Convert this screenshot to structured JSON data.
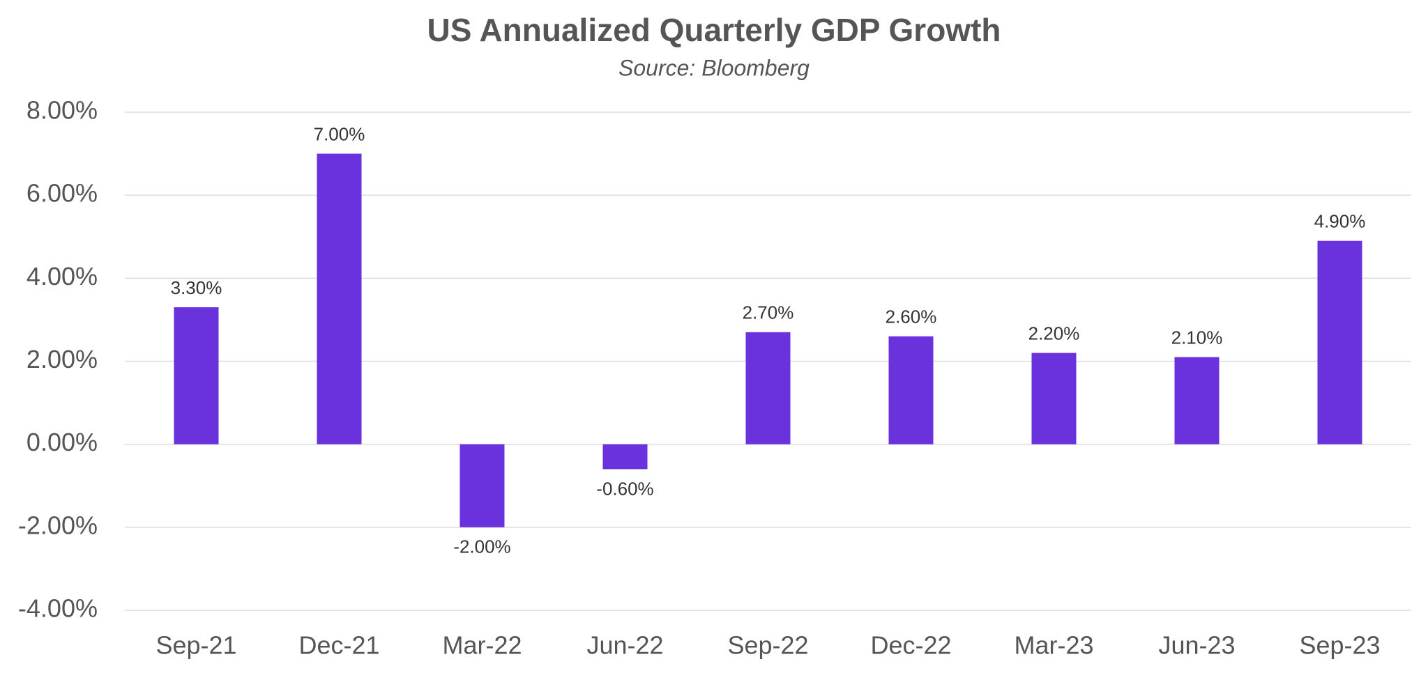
{
  "chart_data": {
    "type": "bar",
    "title": "US Annualized Quarterly GDP Growth",
    "subtitle": "Source: Bloomberg",
    "categories": [
      "Sep-21",
      "Dec-21",
      "Mar-22",
      "Jun-22",
      "Sep-22",
      "Dec-22",
      "Mar-23",
      "Jun-23",
      "Sep-23"
    ],
    "values": [
      3.3,
      7.0,
      -2.0,
      -0.6,
      2.7,
      2.6,
      2.2,
      2.1,
      4.9
    ],
    "value_labels": [
      "3.30%",
      "7.00%",
      "-2.00%",
      "-0.60%",
      "2.70%",
      "2.60%",
      "2.20%",
      "2.10%",
      "4.90%"
    ],
    "color": "#6a32dc",
    "ylim": [
      -4,
      8
    ],
    "yticks": [
      {
        "value": -4,
        "label": "-4.00%"
      },
      {
        "value": -2,
        "label": "-2.00%"
      },
      {
        "value": 0,
        "label": "0.00%"
      },
      {
        "value": 2,
        "label": "2.00%"
      },
      {
        "value": 4,
        "label": "4.00%"
      },
      {
        "value": 6,
        "label": "6.00%"
      },
      {
        "value": 8,
        "label": "8.00%"
      }
    ],
    "grid": true
  }
}
